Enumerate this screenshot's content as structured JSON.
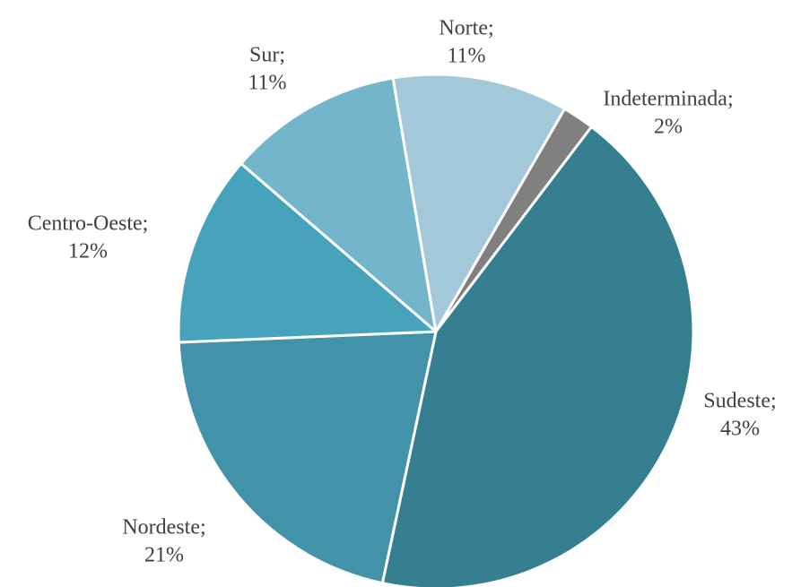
{
  "chart_data": {
    "type": "pie",
    "categories": [
      "Indeterminada;",
      "Sudeste;",
      "Nordeste;",
      "Centro-Oeste;",
      "Sur;",
      "Norte;"
    ],
    "values": [
      2,
      43,
      21,
      12,
      11,
      11
    ],
    "value_labels": [
      "2%",
      "43%",
      "21%",
      "12%",
      "11%",
      "11%"
    ],
    "colors": [
      "#808080",
      "#367f91",
      "#4293aa",
      "#47a3bc",
      "#73b6cc",
      "#a3c8d9"
    ]
  }
}
